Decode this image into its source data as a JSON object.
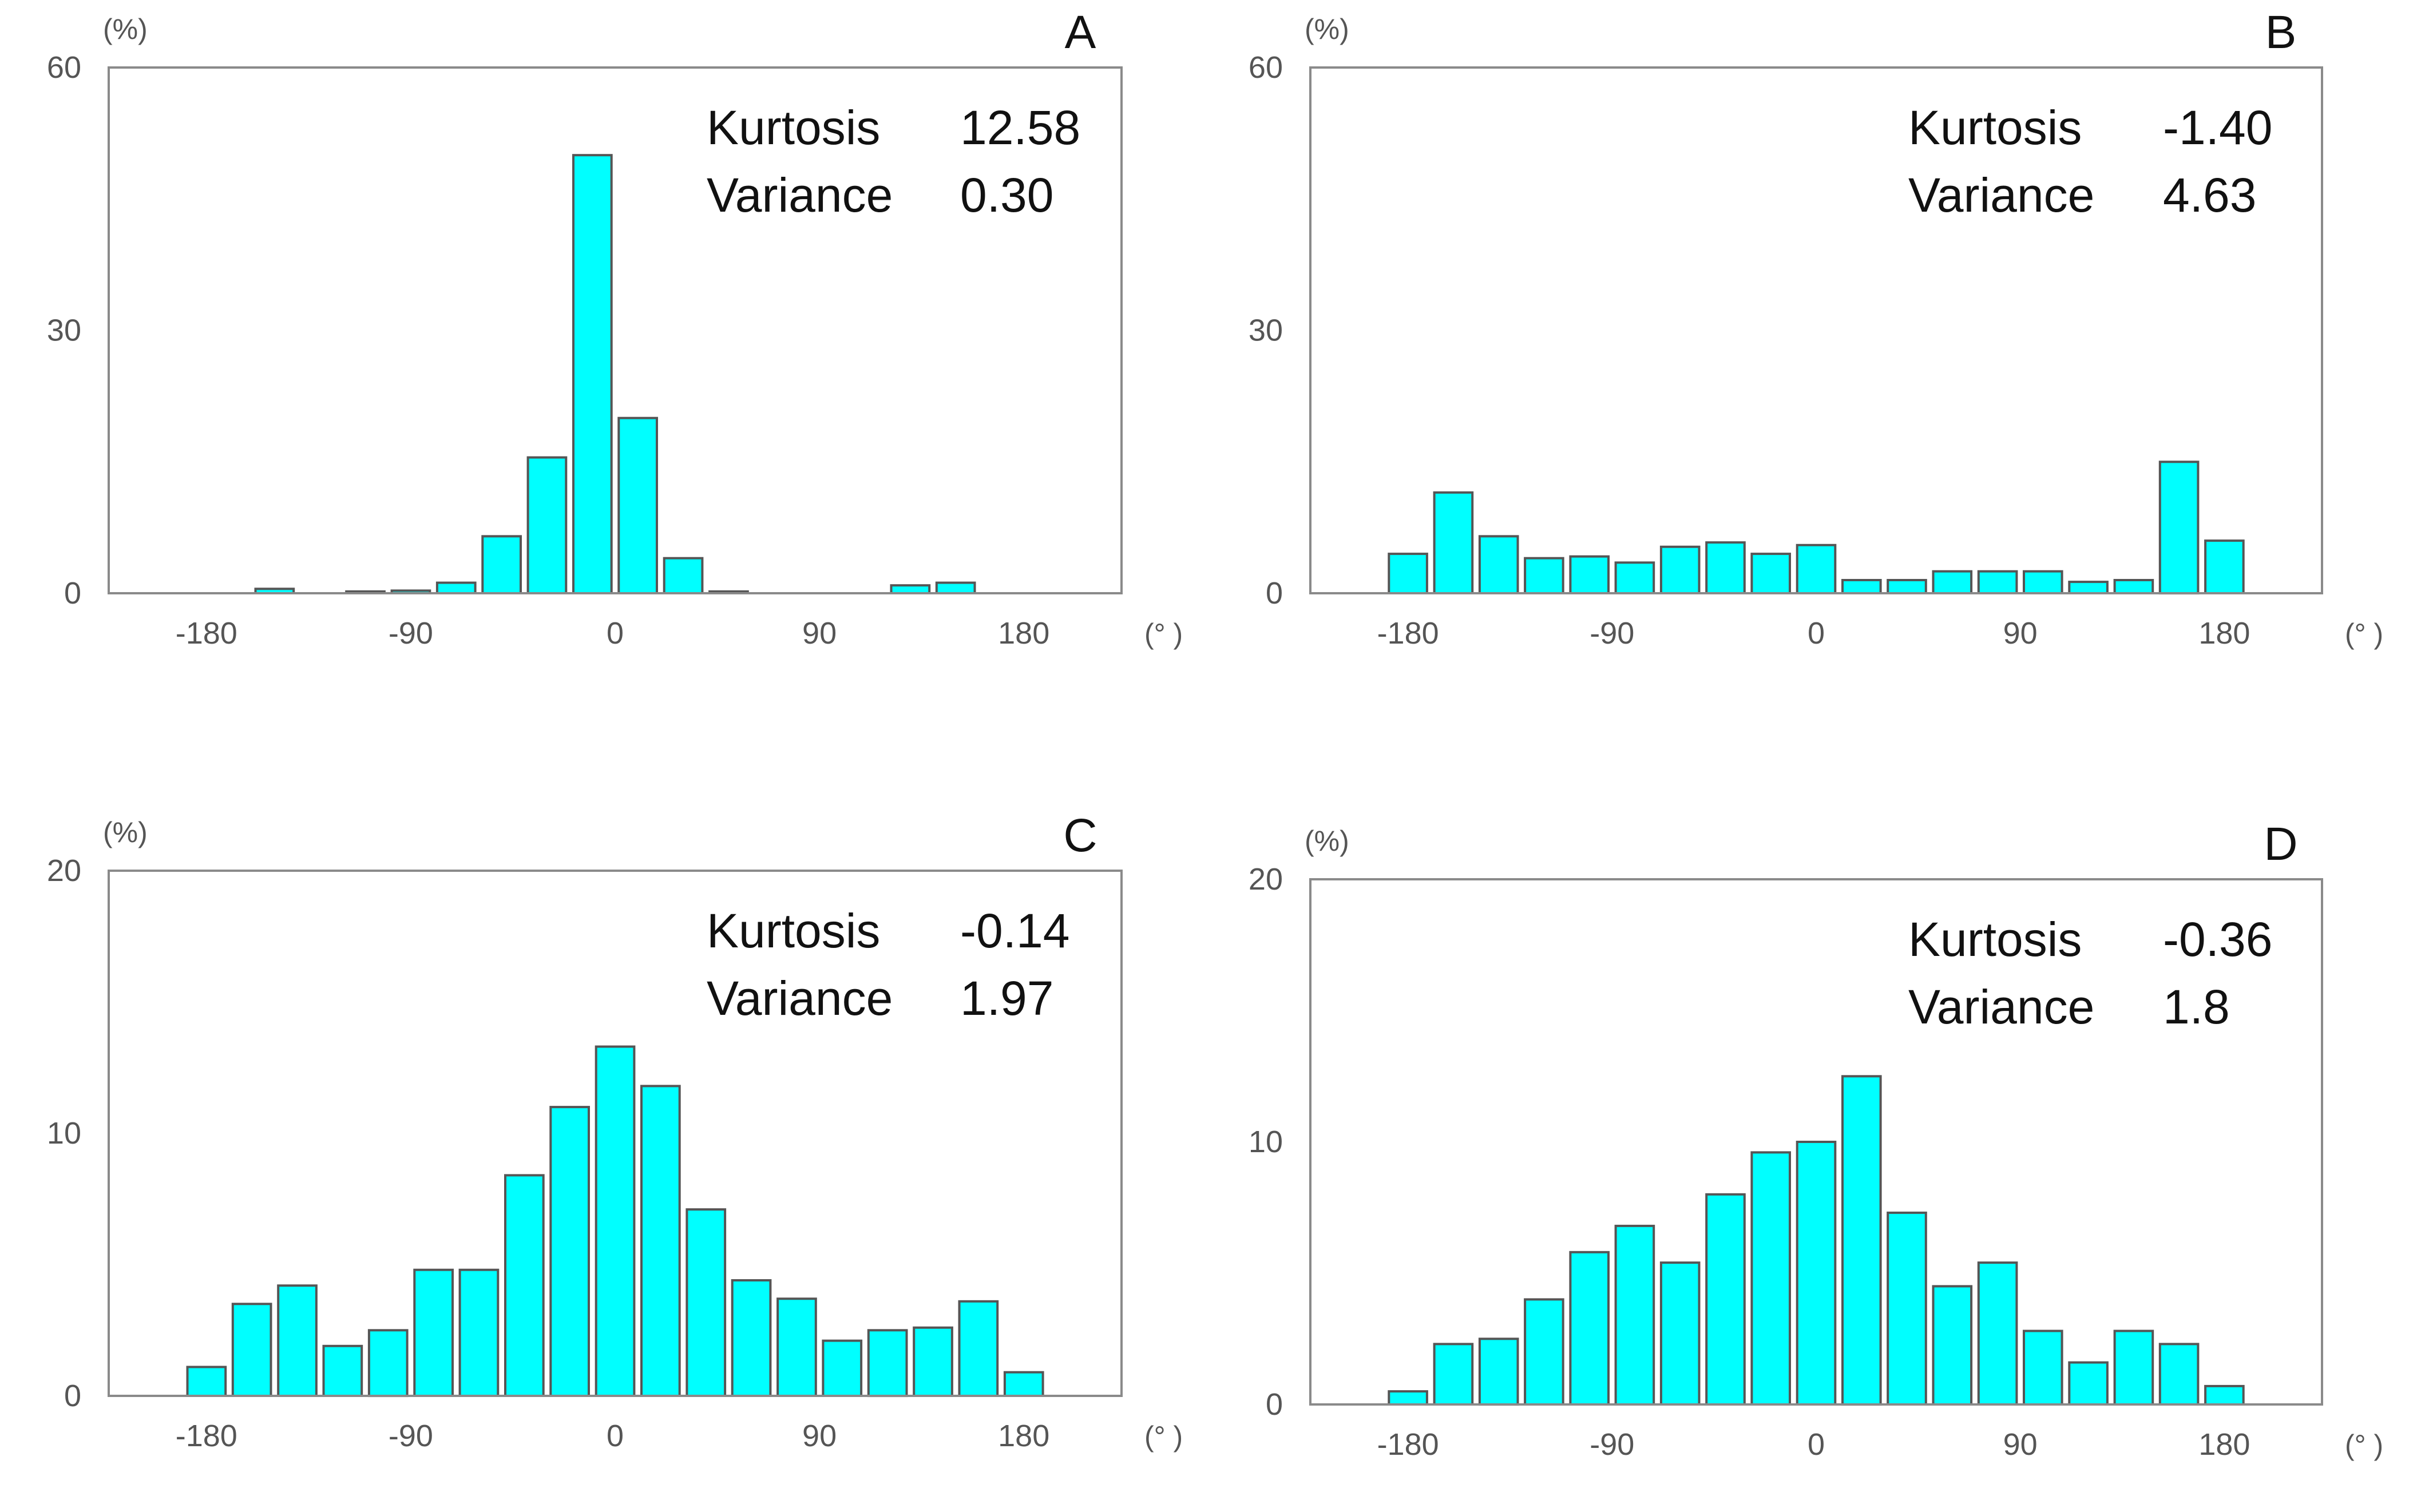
{
  "chart_data": [
    {
      "type": "bar",
      "panel": "A",
      "y_unit": "(%)",
      "x_unit": "(° )",
      "ylim": [
        0,
        60
      ],
      "yticks": [
        "0",
        "30",
        "60"
      ],
      "xticks": [
        "-180",
        "-90",
        "0",
        "90",
        "180"
      ],
      "xlim": [
        -180,
        180
      ],
      "bar_color": "#00ffff",
      "x": [
        -170,
        -150,
        -130,
        -110,
        -90,
        -70,
        -50,
        -30,
        -10,
        10,
        30,
        50,
        70,
        90,
        110,
        130,
        150,
        170
      ],
      "values": [
        0,
        0.5,
        0,
        0.2,
        0.3,
        1.2,
        6.5,
        15.5,
        50,
        20,
        4,
        0.2,
        0,
        0,
        0,
        0.9,
        1.2,
        0
      ],
      "stats": [
        {
          "label": "Kurtosis",
          "value": "12.58"
        },
        {
          "label": "Variance",
          "value": "0.30"
        }
      ]
    },
    {
      "type": "bar",
      "panel": "B",
      "y_unit": "(%)",
      "x_unit": "(° )",
      "ylim": [
        0,
        60
      ],
      "yticks": [
        "0",
        "30",
        "60"
      ],
      "xticks": [
        "-180",
        "-90",
        "0",
        "90",
        "180"
      ],
      "xlim": [
        -180,
        180
      ],
      "bar_color": "#00ffff",
      "x": [
        -180,
        -160,
        -140,
        -120,
        -100,
        -80,
        -60,
        -40,
        -20,
        0,
        20,
        40,
        60,
        80,
        100,
        120,
        140,
        160,
        180
      ],
      "values": [
        4.5,
        11.5,
        6.5,
        4,
        4.2,
        3.5,
        5.3,
        5.8,
        4.5,
        5.5,
        1.5,
        1.5,
        2.5,
        2.5,
        2.5,
        1.3,
        1.5,
        15,
        6
      ],
      "stats": [
        {
          "label": "Kurtosis",
          "value": "-1.40"
        },
        {
          "label": "Variance",
          "value": "4.63"
        }
      ]
    },
    {
      "type": "bar",
      "panel": "C",
      "y_unit": "(%)",
      "x_unit": "(° )",
      "ylim": [
        0,
        20
      ],
      "yticks": [
        "0",
        "10",
        "20"
      ],
      "xticks": [
        "-180",
        "-90",
        "0",
        "90",
        "180"
      ],
      "xlim": [
        -180,
        180
      ],
      "bar_color": "#00ffff",
      "x": [
        -180,
        -160,
        -140,
        -120,
        -100,
        -80,
        -60,
        -40,
        -20,
        0,
        20,
        40,
        60,
        80,
        100,
        120,
        140,
        160,
        180
      ],
      "values": [
        1.1,
        3.5,
        4.2,
        1.9,
        2.5,
        4.8,
        4.8,
        8.4,
        11,
        13.3,
        11.8,
        7.1,
        4.4,
        3.7,
        2.1,
        2.5,
        2.6,
        3.6,
        0.9
      ],
      "stats": [
        {
          "label": "Kurtosis",
          "value": "-0.14"
        },
        {
          "label": "Variance",
          "value": "1.97"
        }
      ]
    },
    {
      "type": "bar",
      "panel": "D",
      "y_unit": "(%)",
      "x_unit": "(° )",
      "ylim": [
        0,
        20
      ],
      "yticks": [
        "0",
        "10",
        "20"
      ],
      "xticks": [
        "-180",
        "-90",
        "0",
        "90",
        "180"
      ],
      "xlim": [
        -180,
        180
      ],
      "bar_color": "#00ffff",
      "x": [
        -180,
        -160,
        -140,
        -120,
        -100,
        -80,
        -60,
        -40,
        -20,
        0,
        20,
        40,
        60,
        80,
        100,
        120,
        140,
        160,
        180
      ],
      "values": [
        0.5,
        2.3,
        2.5,
        4,
        5.8,
        6.8,
        5.4,
        8,
        9.6,
        10,
        12.5,
        7.3,
        4.5,
        5.4,
        2.8,
        1.6,
        2.8,
        2.3,
        0.7
      ],
      "stats": [
        {
          "label": "Kurtosis",
          "value": "-0.36"
        },
        {
          "label": "Variance",
          "value": "1.8"
        }
      ]
    }
  ]
}
